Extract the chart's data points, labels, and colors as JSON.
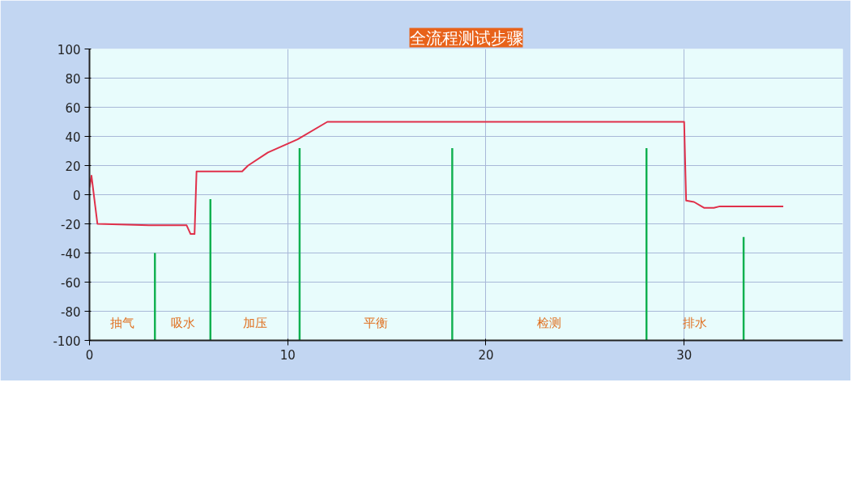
{
  "chart_data": {
    "type": "line",
    "title": "全流程测试步骤",
    "xlim": [
      0,
      38
    ],
    "xticks": [
      0,
      10,
      20,
      30
    ],
    "ylim": [
      -100,
      100
    ],
    "yticks": [
      -100,
      -80,
      -60,
      -40,
      -20,
      0,
      20,
      40,
      60,
      80,
      100
    ],
    "grid": true,
    "series": [
      {
        "color": "#e0304a",
        "x": [
          0,
          0.1,
          0.4,
          3,
          4.9,
          5.1,
          5.3,
          5.4,
          7.7,
          8.0,
          9,
          10.5,
          12,
          30,
          30.1,
          30.5,
          31,
          31.5,
          31.8,
          35
        ],
        "values": [
          5,
          13,
          -20,
          -21,
          -21,
          -27,
          -27,
          16,
          16,
          20,
          29,
          38,
          50,
          50,
          -4,
          -5,
          -9,
          -9,
          -8,
          -8
        ]
      },
      {
        "type": "bar",
        "color": "#10b050",
        "x": [
          3.3,
          6.1,
          10.6,
          18.3,
          28.1,
          33.0
        ],
        "base": [
          -100,
          -100,
          -100,
          -100,
          -100,
          -100
        ],
        "values": [
          60,
          97,
          132,
          132,
          132,
          71
        ]
      }
    ],
    "annotations": [
      "抽气",
      "吸水",
      "加压",
      "平衡",
      "检测",
      "排水"
    ]
  }
}
